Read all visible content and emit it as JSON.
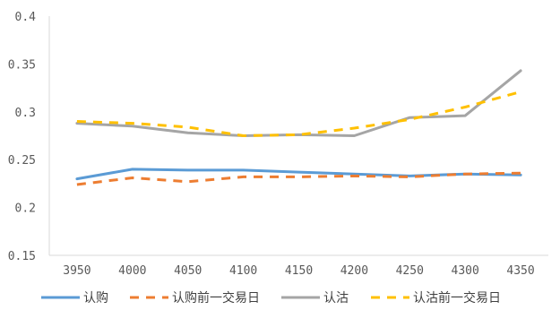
{
  "chart_data": {
    "type": "line",
    "title": "",
    "xlabel": "",
    "ylabel": "",
    "categories": [
      "3950",
      "4000",
      "4050",
      "4100",
      "4150",
      "4200",
      "4250",
      "4300",
      "4350"
    ],
    "y_ticks": [
      "0.15",
      "0.2",
      "0.25",
      "0.3",
      "0.35",
      "0.4"
    ],
    "ylim": [
      0.15,
      0.4
    ],
    "grid": false,
    "legend_position": "bottom",
    "series": [
      {
        "name": "认购",
        "color": "#5B9BD5",
        "dashed": false,
        "values": [
          0.23,
          0.24,
          0.239,
          0.239,
          0.237,
          0.235,
          0.233,
          0.235,
          0.234
        ]
      },
      {
        "name": "认购前一交易日",
        "color": "#ED7D31",
        "dashed": true,
        "values": [
          0.224,
          0.231,
          0.227,
          0.232,
          0.232,
          0.233,
          0.232,
          0.235,
          0.236
        ]
      },
      {
        "name": "认沽",
        "color": "#A5A5A5",
        "dashed": false,
        "values": [
          0.288,
          0.285,
          0.278,
          0.275,
          0.276,
          0.275,
          0.294,
          0.296,
          0.343
        ]
      },
      {
        "name": "认沽前一交易日",
        "color": "#FFC000",
        "dashed": true,
        "values": [
          0.29,
          0.288,
          0.284,
          0.275,
          0.276,
          0.283,
          0.292,
          0.305,
          0.321
        ]
      }
    ]
  }
}
